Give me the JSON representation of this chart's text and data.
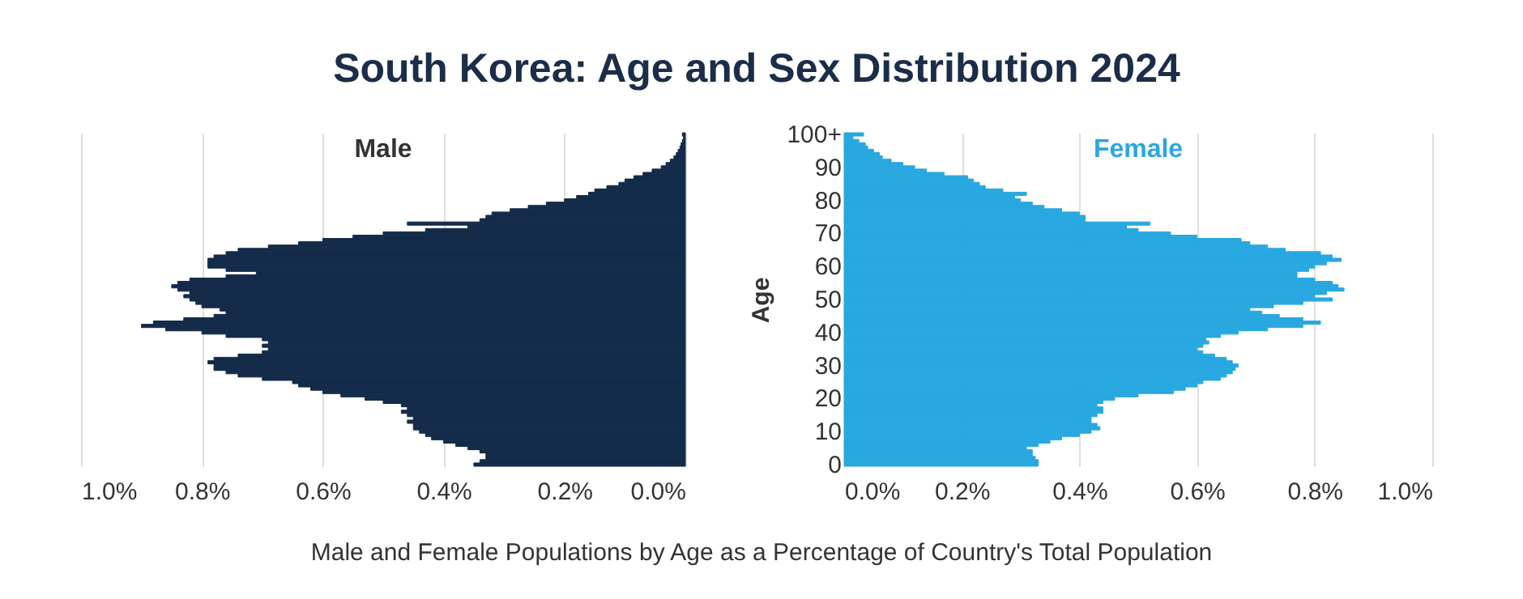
{
  "chart_data": [
    {
      "type": "bar",
      "orientation": "horizontal",
      "title": "South Korea: Age and Sex Distribution 2024",
      "annotations": [
        "Male and Female Populations by Age as a Percentage of Country's Total Population"
      ],
      "categories": [
        "100+",
        null,
        null,
        null,
        null,
        null,
        null,
        null,
        null,
        null,
        "90",
        null,
        null,
        null,
        null,
        null,
        null,
        null,
        null,
        null,
        "80",
        null,
        null,
        null,
        null,
        null,
        null,
        null,
        null,
        null,
        "70",
        null,
        null,
        null,
        null,
        null,
        null,
        null,
        null,
        null,
        "60",
        null,
        null,
        null,
        null,
        null,
        null,
        null,
        null,
        null,
        "50",
        null,
        null,
        null,
        null,
        null,
        null,
        null,
        null,
        null,
        "40",
        null,
        null,
        null,
        null,
        null,
        null,
        null,
        null,
        null,
        "30",
        null,
        null,
        null,
        null,
        null,
        null,
        null,
        null,
        null,
        "20",
        null,
        null,
        null,
        null,
        null,
        null,
        null,
        null,
        null,
        "10",
        null,
        null,
        null,
        null,
        null,
        null,
        null,
        null,
        null,
        "0"
      ],
      "series": [
        {
          "name": "Male",
          "color": "#142b4a",
          "values": [
            0.005,
            0.003,
            0.005,
            0.007,
            0.009,
            0.012,
            0.015,
            0.019,
            0.025,
            0.032,
            0.04,
            0.055,
            0.07,
            0.085,
            0.1,
            0.11,
            0.13,
            0.15,
            0.16,
            0.18,
            0.2,
            0.23,
            0.26,
            0.29,
            0.32,
            0.33,
            0.34,
            0.46,
            0.36,
            0.43,
            0.5,
            0.55,
            0.6,
            0.64,
            0.69,
            0.74,
            0.76,
            0.78,
            0.79,
            0.79,
            0.79,
            0.76,
            0.71,
            0.76,
            0.82,
            0.84,
            0.85,
            0.84,
            0.82,
            0.83,
            0.82,
            0.81,
            0.8,
            0.77,
            0.76,
            0.78,
            0.83,
            0.88,
            0.9,
            0.86,
            0.8,
            0.76,
            0.7,
            0.69,
            0.7,
            0.69,
            0.7,
            0.74,
            0.78,
            0.79,
            0.78,
            0.78,
            0.76,
            0.74,
            0.7,
            0.65,
            0.64,
            0.62,
            0.6,
            0.57,
            0.53,
            0.5,
            0.47,
            0.46,
            0.47,
            0.46,
            0.45,
            0.46,
            0.45,
            0.45,
            0.44,
            0.43,
            0.42,
            0.4,
            0.38,
            0.36,
            0.34,
            0.33,
            0.33,
            0.34,
            0.35
          ]
        }
      ],
      "xlim": [
        1.0,
        0
      ],
      "xticks": [
        {
          "value": 1.0,
          "label": "1.0%"
        },
        {
          "value": 0.8,
          "label": "0.8%"
        },
        {
          "value": 0.6,
          "label": "0.6%"
        },
        {
          "value": 0.4,
          "label": "0.4%"
        },
        {
          "value": 0.2,
          "label": "0.2%"
        },
        {
          "value": 0,
          "label": "0.0%"
        }
      ],
      "grid": "x",
      "tick_labels": "x"
    },
    {
      "type": "bar",
      "orientation": "horizontal",
      "ylabel": "Age",
      "categories": [
        "100+",
        null,
        null,
        null,
        null,
        null,
        null,
        null,
        null,
        null,
        "90",
        null,
        null,
        null,
        null,
        null,
        null,
        null,
        null,
        null,
        "80",
        null,
        null,
        null,
        null,
        null,
        null,
        null,
        null,
        null,
        "70",
        null,
        null,
        null,
        null,
        null,
        null,
        null,
        null,
        null,
        "60",
        null,
        null,
        null,
        null,
        null,
        null,
        null,
        null,
        null,
        "50",
        null,
        null,
        null,
        null,
        null,
        null,
        null,
        null,
        null,
        "40",
        null,
        null,
        null,
        null,
        null,
        null,
        null,
        null,
        null,
        "30",
        null,
        null,
        null,
        null,
        null,
        null,
        null,
        null,
        null,
        "20",
        null,
        null,
        null,
        null,
        null,
        null,
        null,
        null,
        null,
        "10",
        null,
        null,
        null,
        null,
        null,
        null,
        null,
        null,
        null,
        "0"
      ],
      "series": [
        {
          "name": "Female",
          "color": "#29a8e0",
          "values": [
            0.033,
            0.015,
            0.025,
            0.036,
            0.04,
            0.05,
            0.06,
            0.065,
            0.08,
            0.1,
            0.12,
            0.14,
            0.17,
            0.21,
            0.22,
            0.23,
            0.24,
            0.27,
            0.31,
            0.29,
            0.3,
            0.32,
            0.34,
            0.37,
            0.4,
            0.41,
            0.41,
            0.52,
            0.48,
            0.5,
            0.555,
            0.6,
            0.675,
            0.69,
            0.72,
            0.75,
            0.81,
            0.83,
            0.845,
            0.82,
            0.8,
            0.79,
            0.77,
            0.77,
            0.8,
            0.83,
            0.84,
            0.85,
            0.82,
            0.8,
            0.83,
            0.78,
            0.73,
            0.69,
            0.71,
            0.74,
            0.78,
            0.81,
            0.78,
            0.72,
            0.67,
            0.64,
            0.615,
            0.62,
            0.61,
            0.6,
            0.61,
            0.63,
            0.65,
            0.66,
            0.67,
            0.665,
            0.66,
            0.65,
            0.64,
            0.61,
            0.6,
            0.58,
            0.56,
            0.5,
            0.46,
            0.44,
            0.43,
            0.44,
            0.44,
            0.43,
            0.42,
            0.42,
            0.43,
            0.435,
            0.42,
            0.4,
            0.37,
            0.35,
            0.33,
            0.31,
            0.32,
            0.32,
            0.325,
            0.33,
            0.33
          ]
        }
      ],
      "xlim": [
        0,
        1.0
      ],
      "xticks": [
        {
          "value": 0,
          "label": "0.0%"
        },
        {
          "value": 0.2,
          "label": "0.2%"
        },
        {
          "value": 0.4,
          "label": "0.4%"
        },
        {
          "value": 0.6,
          "label": "0.6%"
        },
        {
          "value": 0.8,
          "label": "0.8%"
        },
        {
          "value": 1.0,
          "label": "1.0%"
        }
      ],
      "grid": "x"
    }
  ]
}
